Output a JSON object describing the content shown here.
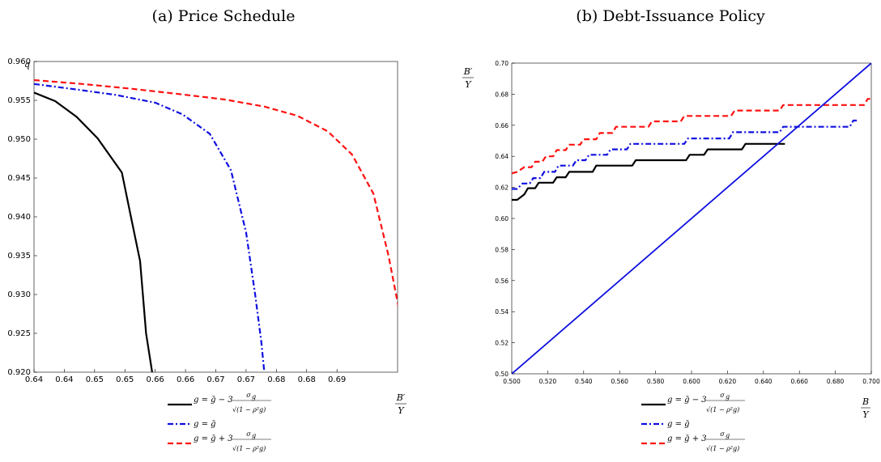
{
  "figure": {
    "panel_a_title": "(a) Price Schedule",
    "panel_b_title": "(b) Debt-Issuance Policy"
  },
  "chart_data": [
    {
      "type": "line",
      "title": "(a) Price Schedule",
      "ylabel": "q",
      "xlabel": "B'/Y",
      "xlim": [
        0.64,
        0.7
      ],
      "ylim": [
        0.92,
        0.96
      ],
      "xticks": [
        0.64,
        0.645,
        0.65,
        0.655,
        0.66,
        0.665,
        0.67,
        0.675,
        0.68,
        0.685,
        0.69
      ],
      "xtick_labels": [
        "0.64",
        "0.64",
        "0.65",
        "0.65",
        "0.66",
        "0.66",
        "0.67",
        "0.67",
        "0.68",
        "0.68",
        "0.69"
      ],
      "yticks": [
        0.92,
        0.925,
        0.93,
        0.935,
        0.94,
        0.945,
        0.95,
        0.955,
        0.96
      ],
      "ytick_labels": [
        "0.920",
        "0.925",
        "0.930",
        "0.935",
        "0.940",
        "0.945",
        "0.950",
        "0.955",
        "0.960"
      ],
      "grid": false,
      "legend_position": "below",
      "series": [
        {
          "name": "g = ḡ − 3 σg / √(1 − ρg²)",
          "color": "#000000",
          "style": "solid",
          "points": [
            [
              0.64,
              0.956
            ],
            [
              0.6435,
              0.9549
            ],
            [
              0.647,
              0.9529
            ],
            [
              0.6505,
              0.9501
            ],
            [
              0.6545,
              0.9457
            ],
            [
              0.656,
              0.94
            ],
            [
              0.6575,
              0.9343
            ],
            [
              0.6585,
              0.925
            ],
            [
              0.6595,
              0.92
            ]
          ]
        },
        {
          "name": "g = ḡ",
          "color": "#1010e0",
          "style": "dashdot",
          "points": [
            [
              0.64,
              0.9571
            ],
            [
              0.647,
              0.9564
            ],
            [
              0.6535,
              0.9557
            ],
            [
              0.66,
              0.9547
            ],
            [
              0.6645,
              0.9532
            ],
            [
              0.669,
              0.9507
            ],
            [
              0.6725,
              0.946
            ],
            [
              0.675,
              0.938
            ],
            [
              0.6765,
              0.93
            ],
            [
              0.6775,
              0.924
            ],
            [
              0.678,
              0.92
            ]
          ]
        },
        {
          "name": "g = ḡ + 3 σg / √(1 − ρg²)",
          "color": "#ff1010",
          "style": "dashed",
          "points": [
            [
              0.64,
              0.9576
            ],
            [
              0.648,
              0.9571
            ],
            [
              0.656,
              0.9565
            ],
            [
              0.664,
              0.9558
            ],
            [
              0.6715,
              0.9551
            ],
            [
              0.678,
              0.9542
            ],
            [
              0.6835,
              0.953
            ],
            [
              0.6885,
              0.951
            ],
            [
              0.6925,
              0.948
            ],
            [
              0.696,
              0.943
            ],
            [
              0.6985,
              0.935
            ],
            [
              0.7005,
              0.927
            ],
            [
              0.7015,
              0.92
            ]
          ]
        }
      ]
    },
    {
      "type": "line",
      "title": "(b) Debt-Issuance Policy",
      "ylabel": "B'/Y",
      "xlabel": "B/Y",
      "xlim": [
        0.5,
        0.7
      ],
      "ylim": [
        0.5,
        0.7
      ],
      "xticks": [
        0.5,
        0.52,
        0.54,
        0.56,
        0.58,
        0.6,
        0.62,
        0.64,
        0.66,
        0.68,
        0.7
      ],
      "xtick_labels": [
        "0.500",
        "0.520",
        "0.540",
        "0.560",
        "0.580",
        "0.600",
        "0.620",
        "0.640",
        "0.660",
        "0.680",
        "0.700"
      ],
      "yticks": [
        0.5,
        0.52,
        0.54,
        0.56,
        0.58,
        0.6,
        0.62,
        0.64,
        0.66,
        0.68,
        0.7
      ],
      "ytick_labels": [
        "0.50",
        "0.52",
        "0.54",
        "0.56",
        "0.58",
        "0.60",
        "0.62",
        "0.64",
        "0.66",
        "0.68",
        "0.70"
      ],
      "grid": false,
      "legend_position": "below",
      "series": [
        {
          "name": "g = ḡ − 3 σg / √(1 − ρg²)",
          "color": "#000000",
          "style": "solid",
          "points": [
            [
              0.5,
              0.612
            ],
            [
              0.503,
              0.612
            ],
            [
              0.507,
              0.6155
            ],
            [
              0.509,
              0.6195
            ],
            [
              0.513,
              0.6195
            ],
            [
              0.515,
              0.623
            ],
            [
              0.523,
              0.623
            ],
            [
              0.525,
              0.6265
            ],
            [
              0.53,
              0.6265
            ],
            [
              0.532,
              0.63
            ],
            [
              0.545,
              0.63
            ],
            [
              0.547,
              0.634
            ],
            [
              0.567,
              0.634
            ],
            [
              0.569,
              0.6375
            ],
            [
              0.597,
              0.6375
            ],
            [
              0.599,
              0.641
            ],
            [
              0.607,
              0.641
            ],
            [
              0.609,
              0.6445
            ],
            [
              0.628,
              0.6445
            ],
            [
              0.63,
              0.648
            ],
            [
              0.652,
              0.648
            ]
          ]
        },
        {
          "name": "g = ḡ",
          "color": "#1010e0",
          "style": "dashdot",
          "points": [
            [
              0.5,
              0.619
            ],
            [
              0.503,
              0.619
            ],
            [
              0.506,
              0.6225
            ],
            [
              0.51,
              0.6225
            ],
            [
              0.512,
              0.626
            ],
            [
              0.516,
              0.626
            ],
            [
              0.518,
              0.63
            ],
            [
              0.524,
              0.63
            ],
            [
              0.526,
              0.634
            ],
            [
              0.534,
              0.634
            ],
            [
              0.536,
              0.6375
            ],
            [
              0.541,
              0.6375
            ],
            [
              0.543,
              0.641
            ],
            [
              0.553,
              0.641
            ],
            [
              0.555,
              0.6445
            ],
            [
              0.564,
              0.6445
            ],
            [
              0.566,
              0.648
            ],
            [
              0.596,
              0.648
            ],
            [
              0.598,
              0.6515
            ],
            [
              0.621,
              0.6515
            ],
            [
              0.623,
              0.6555
            ],
            [
              0.649,
              0.6555
            ],
            [
              0.651,
              0.659
            ],
            [
              0.688,
              0.659
            ],
            [
              0.69,
              0.663
            ],
            [
              0.692,
              0.663
            ]
          ]
        },
        {
          "name": "g = ḡ + 3 σg / √(1 − ρg²)",
          "color": "#ff1010",
          "style": "dashed",
          "points": [
            [
              0.5,
              0.629
            ],
            [
              0.503,
              0.63
            ],
            [
              0.507,
              0.633
            ],
            [
              0.511,
              0.633
            ],
            [
              0.513,
              0.6365
            ],
            [
              0.517,
              0.6365
            ],
            [
              0.519,
              0.64
            ],
            [
              0.523,
              0.64
            ],
            [
              0.525,
              0.644
            ],
            [
              0.53,
              0.644
            ],
            [
              0.532,
              0.6475
            ],
            [
              0.538,
              0.6475
            ],
            [
              0.54,
              0.651
            ],
            [
              0.547,
              0.651
            ],
            [
              0.549,
              0.655
            ],
            [
              0.556,
              0.655
            ],
            [
              0.558,
              0.659
            ],
            [
              0.576,
              0.659
            ],
            [
              0.578,
              0.6625
            ],
            [
              0.594,
              0.6625
            ],
            [
              0.596,
              0.666
            ],
            [
              0.622,
              0.666
            ],
            [
              0.624,
              0.6695
            ],
            [
              0.649,
              0.6695
            ],
            [
              0.651,
              0.673
            ],
            [
              0.696,
              0.673
            ],
            [
              0.698,
              0.677
            ],
            [
              0.7,
              0.677
            ]
          ]
        },
        {
          "name": "45-degree line",
          "color": "#1010e0",
          "style": "solid",
          "points": [
            [
              0.5,
              0.5
            ],
            [
              0.7,
              0.7
            ]
          ]
        }
      ]
    }
  ]
}
